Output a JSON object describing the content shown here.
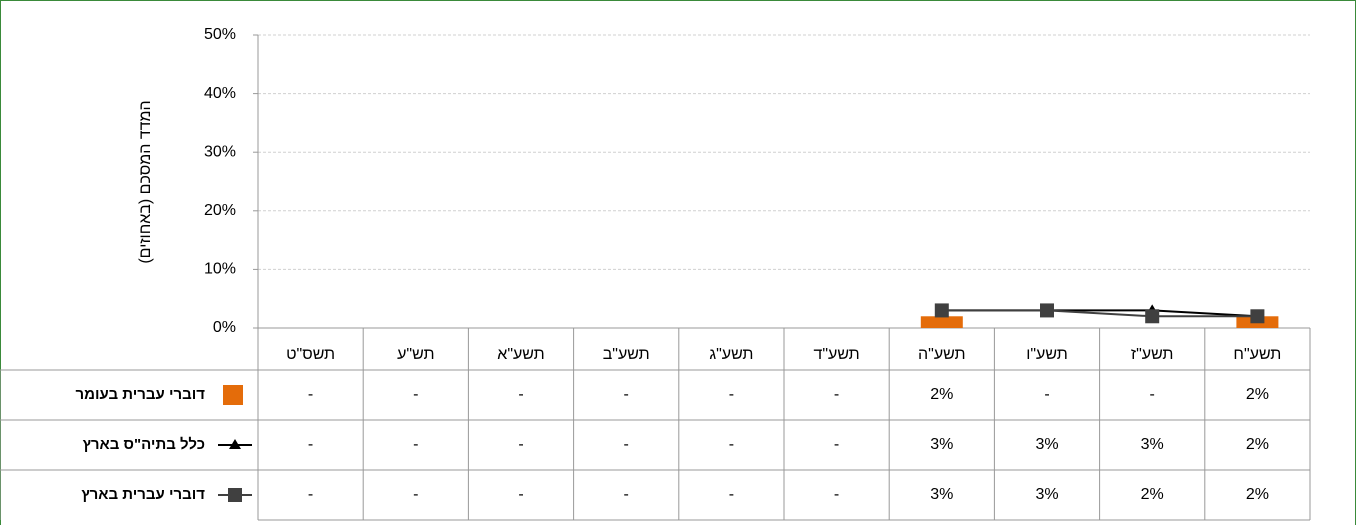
{
  "chart_data": {
    "type": "bar_line_table",
    "y_axis_label": "המדד המסכם (באחוזים)",
    "categories": [
      "תשס\"ט",
      "תש\"ע",
      "תשע\"א",
      "תשע\"ב",
      "תשע\"ג",
      "תשע\"ד",
      "תשע\"ה",
      "תשע\"ו",
      "תשע\"ז",
      "תשע\"ח"
    ],
    "ylim": [
      0,
      50
    ],
    "yticks": [
      {
        "value": 0,
        "label": "0%"
      },
      {
        "value": 10,
        "label": "10%"
      },
      {
        "value": 20,
        "label": "20%"
      },
      {
        "value": 30,
        "label": "30%"
      },
      {
        "value": 40,
        "label": "40%"
      },
      {
        "value": 50,
        "label": "50%"
      }
    ],
    "grid": true,
    "series": [
      {
        "name": "דוברי עברית בעומר",
        "type": "bar",
        "color": "#e46c0a",
        "values": [
          null,
          null,
          null,
          null,
          null,
          null,
          2,
          null,
          null,
          2
        ],
        "value_labels": [
          "-",
          "-",
          "-",
          "-",
          "-",
          "-",
          "2%",
          "-",
          "-",
          "2%"
        ]
      },
      {
        "name": "כלל בתיה\"ס בארץ",
        "type": "line",
        "marker": "triangle",
        "color": "#000000",
        "values": [
          null,
          null,
          null,
          null,
          null,
          null,
          3,
          3,
          3,
          2
        ],
        "value_labels": [
          "-",
          "-",
          "-",
          "-",
          "-",
          "-",
          "3%",
          "3%",
          "3%",
          "2%"
        ]
      },
      {
        "name": "דוברי עברית בארץ",
        "type": "line",
        "marker": "square",
        "color": "#404040",
        "values": [
          null,
          null,
          null,
          null,
          null,
          null,
          3,
          3,
          2,
          2
        ],
        "value_labels": [
          "-",
          "-",
          "-",
          "-",
          "-",
          "-",
          "3%",
          "3%",
          "2%",
          "2%"
        ]
      }
    ]
  }
}
